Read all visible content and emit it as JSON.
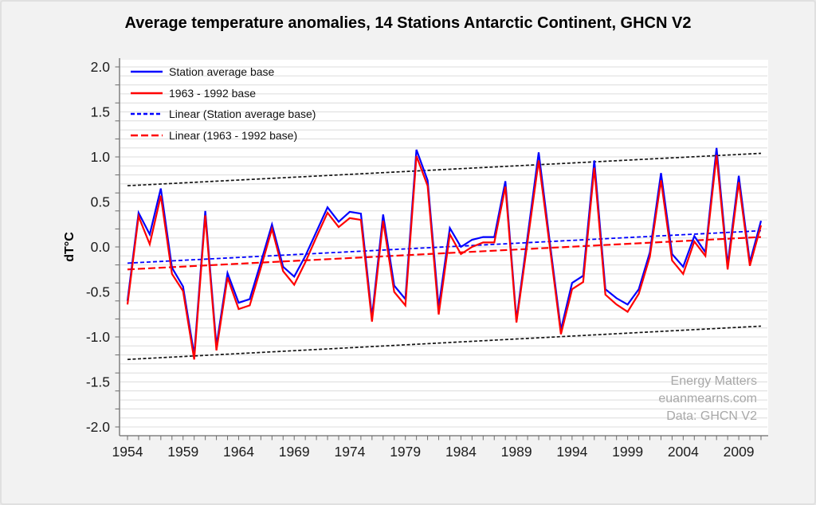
{
  "chart_data": {
    "type": "line",
    "title": "Average temperature anomalies, 14 Stations Antarctic Continent, GHCN V2",
    "ylabel": "dT°C",
    "xlabel": "",
    "grid": true,
    "legend_position": "top-left-inside",
    "colors": {
      "series_blue": "#0000ff",
      "series_red": "#ff0000",
      "envelope_black": "#141414",
      "gridline": "#dcdcdc",
      "axis": "#6b6b6b",
      "plot_background": "#ffffff",
      "figure_background": "#f2f2f2",
      "watermark_gray": "#a8a8a8"
    },
    "x": [
      1954,
      1955,
      1956,
      1957,
      1958,
      1959,
      1960,
      1961,
      1962,
      1963,
      1964,
      1965,
      1966,
      1967,
      1968,
      1969,
      1970,
      1971,
      1972,
      1973,
      1974,
      1975,
      1976,
      1977,
      1978,
      1979,
      1980,
      1981,
      1982,
      1983,
      1984,
      1985,
      1986,
      1987,
      1988,
      1989,
      1990,
      1991,
      1992,
      1993,
      1994,
      1995,
      1996,
      1997,
      1998,
      1999,
      2000,
      2001,
      2002,
      2003,
      2004,
      2005,
      2006,
      2007,
      2008,
      2009,
      2010,
      2011
    ],
    "series": [
      {
        "name": "Station average base",
        "color": "#0000ff",
        "dash": "none",
        "width": 2.2,
        "values": [
          -0.6,
          0.38,
          0.14,
          0.65,
          -0.23,
          -0.44,
          -1.2,
          0.4,
          -1.1,
          -0.29,
          -0.62,
          -0.58,
          -0.17,
          0.25,
          -0.22,
          -0.33,
          -0.1,
          0.17,
          0.44,
          0.28,
          0.39,
          0.37,
          -0.78,
          0.36,
          -0.43,
          -0.58,
          1.08,
          0.74,
          -0.67,
          0.21,
          0.0,
          0.08,
          0.11,
          0.11,
          0.73,
          -0.81,
          0.12,
          1.05,
          0.05,
          -0.92,
          -0.4,
          -0.32,
          0.96,
          -0.47,
          -0.57,
          -0.64,
          -0.47,
          -0.06,
          0.82,
          -0.08,
          -0.22,
          0.12,
          -0.06,
          1.1,
          -0.2,
          0.79,
          -0.17,
          0.29
        ]
      },
      {
        "name": "1963 - 1992 base",
        "color": "#ff0000",
        "dash": "none",
        "width": 2.2,
        "values": [
          -0.64,
          0.34,
          0.03,
          0.57,
          -0.3,
          -0.49,
          -1.25,
          0.35,
          -1.15,
          -0.34,
          -0.69,
          -0.65,
          -0.23,
          0.2,
          -0.27,
          -0.42,
          -0.17,
          0.11,
          0.38,
          0.22,
          0.32,
          0.3,
          -0.83,
          0.29,
          -0.5,
          -0.65,
          1.01,
          0.68,
          -0.75,
          0.14,
          -0.08,
          0.0,
          0.05,
          0.05,
          0.67,
          -0.84,
          0.06,
          0.96,
          0.0,
          -0.97,
          -0.47,
          -0.39,
          0.88,
          -0.53,
          -0.64,
          -0.72,
          -0.52,
          -0.11,
          0.74,
          -0.15,
          -0.3,
          0.06,
          -0.1,
          1.02,
          -0.25,
          0.72,
          -0.21,
          0.24
        ]
      },
      {
        "name": "Linear (Station average base)",
        "color": "#0000ff",
        "dash": "5,3",
        "width": 1.8,
        "trend": {
          "x_start": 1954,
          "x_end": 2011,
          "start": -0.18,
          "end": 0.18
        }
      },
      {
        "name": "Linear (1963 - 1992 base)",
        "color": "#ff0000",
        "dash": "9,4",
        "width": 2.2,
        "trend": {
          "x_start": 1954,
          "x_end": 2011,
          "start": -0.25,
          "end": 0.11
        }
      }
    ],
    "envelopes": [
      {
        "name": "upper-bound-dashed",
        "color": "#141414",
        "dash": "4,2.5",
        "width": 1.7,
        "x_start": 1954,
        "x_end": 2011,
        "start": 0.68,
        "end": 1.04
      },
      {
        "name": "lower-bound-dashed",
        "color": "#141414",
        "dash": "4,2.5",
        "width": 1.7,
        "x_start": 1954,
        "x_end": 2011,
        "start": -1.25,
        "end": -0.88
      }
    ],
    "x_axis": {
      "range": [
        1954,
        2011
      ],
      "minor_tick_step_years": 1,
      "tick_years": [
        1954,
        1959,
        1964,
        1969,
        1974,
        1979,
        1984,
        1989,
        1994,
        1999,
        2004,
        2009
      ],
      "tick_labels": [
        "1954",
        "1959",
        "1964",
        "1969",
        "1974",
        "1979",
        "1984",
        "1989",
        "1994",
        "1999",
        "2004",
        "2009"
      ]
    },
    "y_axis": {
      "range": [
        -2.0,
        2.0
      ],
      "grid_step": 0.1,
      "minor_tick_step": 0.2,
      "tick_values": [
        2.0,
        1.5,
        1.0,
        0.5,
        0.0,
        -0.5,
        -1.0,
        -1.5,
        -2.0
      ],
      "tick_labels": [
        "2.0",
        "1.5",
        "1.0",
        "0.5",
        "0.0",
        "-0.5",
        "-1.0",
        "-1.5",
        "-2.0"
      ]
    },
    "watermark_lines": [
      "Energy Matters",
      "euanmearns.com",
      "Data: GHCN V2"
    ]
  }
}
